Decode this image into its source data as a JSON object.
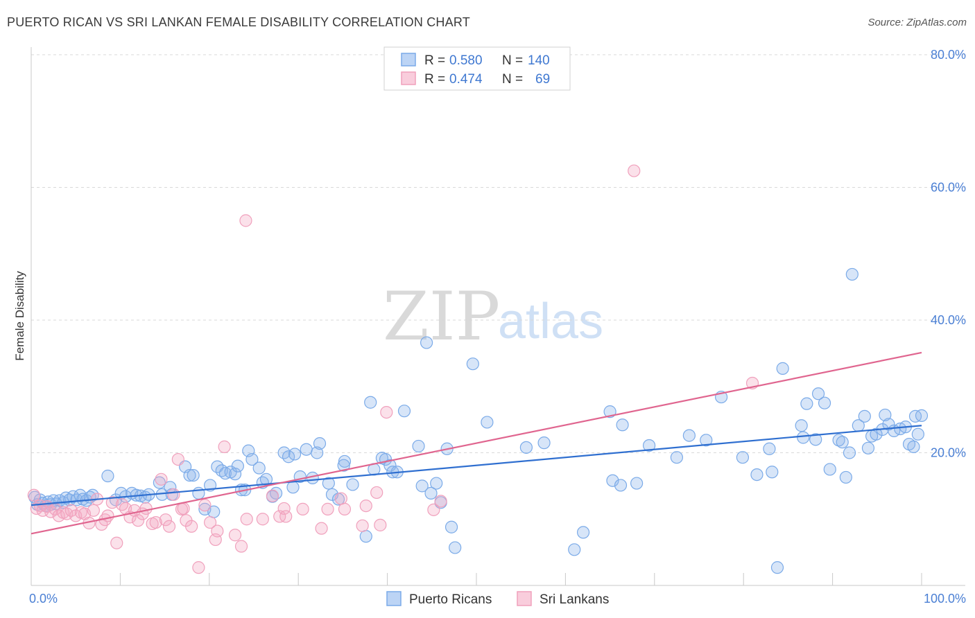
{
  "header": {
    "title": "PUERTO RICAN VS SRI LANKAN FEMALE DISABILITY CORRELATION CHART",
    "source": "Source: ZipAtlas.com"
  },
  "watermark": {
    "zip": "ZIP",
    "atlas": "atlas"
  },
  "legend": {
    "rows": [
      {
        "r_label": "R = ",
        "r_value": "0.580",
        "n_label": "N = ",
        "n_value": "140",
        "color": "#7aaae8"
      },
      {
        "r_label": "R = ",
        "r_value": "0.474",
        "n_label": "N = ",
        "n_value": "69",
        "color": "#f0a0bc"
      }
    ]
  },
  "bottom_legend": [
    {
      "label": "Puerto Ricans",
      "color": "#7aaae8"
    },
    {
      "label": "Sri Lankans",
      "color": "#f0a0bc"
    }
  ],
  "chart_data": {
    "type": "scatter",
    "title": "PUERTO RICAN VS SRI LANKAN FEMALE DISABILITY CORRELATION CHART",
    "ylabel": "Female Disability",
    "xlabel": "",
    "xlim": [
      0,
      100
    ],
    "ylim": [
      0,
      80
    ],
    "x_tick_labels": [
      {
        "value": 0,
        "label": "0.0%"
      },
      {
        "value": 100,
        "label": "100.0%"
      }
    ],
    "y_tick_labels": [
      {
        "value": 20,
        "label": "20.0%"
      },
      {
        "value": 40,
        "label": "40.0%"
      },
      {
        "value": 60,
        "label": "60.0%"
      },
      {
        "value": 80,
        "label": "80.0%"
      }
    ],
    "grid": true,
    "legend_position": "top-center",
    "series": [
      {
        "name": "Puerto Ricans",
        "color": "#7aaae8",
        "line_color": "#2f6fd0",
        "trend": {
          "x": [
            0,
            100
          ],
          "y": [
            12.1,
            24.1
          ]
        },
        "points": [
          [
            0.4,
            13.3
          ],
          [
            0.7,
            12.2
          ],
          [
            1.0,
            12.9
          ],
          [
            1.3,
            12.4
          ],
          [
            1.6,
            12.0
          ],
          [
            1.9,
            12.6
          ],
          [
            2.2,
            12.2
          ],
          [
            2.5,
            12.8
          ],
          [
            2.8,
            12.3
          ],
          [
            3.2,
            12.8
          ],
          [
            3.6,
            12.5
          ],
          [
            3.9,
            13.2
          ],
          [
            4.3,
            12.9
          ],
          [
            4.7,
            13.4
          ],
          [
            5.1,
            12.9
          ],
          [
            5.5,
            13.6
          ],
          [
            5.8,
            13.0
          ],
          [
            6.2,
            12.8
          ],
          [
            6.6,
            13.3
          ],
          [
            6.9,
            13.6
          ],
          [
            8.6,
            16.5
          ],
          [
            9.5,
            12.9
          ],
          [
            10.1,
            13.9
          ],
          [
            10.6,
            13.4
          ],
          [
            11.3,
            13.9
          ],
          [
            11.8,
            13.6
          ],
          [
            12.3,
            13.5
          ],
          [
            12.8,
            13.3
          ],
          [
            13.2,
            13.7
          ],
          [
            14.4,
            15.5
          ],
          [
            14.7,
            13.7
          ],
          [
            15.6,
            14.8
          ],
          [
            15.8,
            13.7
          ],
          [
            17.3,
            17.9
          ],
          [
            17.8,
            16.6
          ],
          [
            18.2,
            16.6
          ],
          [
            18.8,
            13.9
          ],
          [
            19.5,
            11.5
          ],
          [
            20.1,
            15.1
          ],
          [
            20.5,
            11.1
          ],
          [
            20.9,
            17.9
          ],
          [
            21.4,
            17.3
          ],
          [
            21.8,
            16.9
          ],
          [
            22.4,
            17.1
          ],
          [
            22.9,
            16.8
          ],
          [
            23.2,
            18.0
          ],
          [
            23.6,
            14.4
          ],
          [
            24.0,
            14.4
          ],
          [
            24.4,
            20.3
          ],
          [
            24.8,
            19.0
          ],
          [
            25.6,
            17.7
          ],
          [
            26.0,
            15.5
          ],
          [
            26.4,
            16.0
          ],
          [
            27.1,
            13.4
          ],
          [
            27.5,
            13.9
          ],
          [
            28.4,
            20.0
          ],
          [
            28.9,
            19.4
          ],
          [
            29.6,
            19.8
          ],
          [
            29.4,
            14.8
          ],
          [
            30.2,
            16.4
          ],
          [
            30.9,
            20.5
          ],
          [
            31.6,
            16.2
          ],
          [
            32.1,
            20.0
          ],
          [
            32.4,
            21.4
          ],
          [
            33.4,
            15.4
          ],
          [
            33.8,
            13.7
          ],
          [
            34.5,
            13.0
          ],
          [
            35.2,
            18.7
          ],
          [
            35.1,
            18.1
          ],
          [
            36.1,
            15.2
          ],
          [
            37.6,
            7.4
          ],
          [
            38.1,
            27.6
          ],
          [
            38.5,
            17.5
          ],
          [
            39.4,
            19.2
          ],
          [
            39.8,
            19.0
          ],
          [
            40.3,
            18.1
          ],
          [
            40.6,
            17.1
          ],
          [
            41.1,
            17.1
          ],
          [
            41.9,
            26.3
          ],
          [
            43.5,
            21.0
          ],
          [
            43.9,
            15.0
          ],
          [
            44.4,
            36.6
          ],
          [
            44.9,
            13.9
          ],
          [
            45.5,
            15.4
          ],
          [
            46.0,
            12.5
          ],
          [
            46.7,
            20.6
          ],
          [
            47.2,
            8.8
          ],
          [
            47.6,
            5.7
          ],
          [
            49.6,
            33.4
          ],
          [
            51.2,
            24.6
          ],
          [
            55.6,
            20.8
          ],
          [
            57.6,
            21.5
          ],
          [
            61.0,
            5.4
          ],
          [
            62.0,
            8.0
          ],
          [
            65.0,
            26.2
          ],
          [
            65.3,
            15.8
          ],
          [
            66.2,
            15.1
          ],
          [
            66.4,
            24.2
          ],
          [
            68.0,
            15.4
          ],
          [
            69.4,
            21.1
          ],
          [
            72.5,
            19.3
          ],
          [
            73.9,
            22.6
          ],
          [
            75.8,
            21.9
          ],
          [
            77.5,
            28.4
          ],
          [
            79.9,
            19.3
          ],
          [
            81.5,
            16.7
          ],
          [
            82.9,
            20.6
          ],
          [
            83.2,
            17.1
          ],
          [
            83.8,
            2.7
          ],
          [
            84.4,
            32.7
          ],
          [
            86.5,
            24.1
          ],
          [
            86.7,
            22.3
          ],
          [
            87.1,
            27.4
          ],
          [
            88.1,
            22.0
          ],
          [
            88.4,
            28.9
          ],
          [
            89.1,
            27.5
          ],
          [
            89.7,
            17.5
          ],
          [
            90.7,
            21.9
          ],
          [
            91.1,
            21.6
          ],
          [
            91.5,
            16.3
          ],
          [
            91.9,
            20.0
          ],
          [
            92.2,
            46.9
          ],
          [
            92.9,
            24.1
          ],
          [
            93.6,
            25.5
          ],
          [
            94.0,
            20.7
          ],
          [
            94.4,
            22.5
          ],
          [
            94.9,
            22.8
          ],
          [
            95.6,
            23.5
          ],
          [
            95.9,
            25.7
          ],
          [
            96.3,
            24.3
          ],
          [
            96.9,
            23.3
          ],
          [
            97.6,
            23.6
          ],
          [
            98.2,
            23.9
          ],
          [
            98.6,
            21.3
          ],
          [
            99.1,
            20.9
          ],
          [
            99.3,
            25.5
          ],
          [
            99.6,
            22.8
          ],
          [
            100.0,
            25.6
          ]
        ]
      },
      {
        "name": "Sri Lankans",
        "color": "#f0a0bc",
        "line_color": "#e0658f",
        "trend": {
          "x": [
            0,
            100
          ],
          "y": [
            7.8,
            35.1
          ]
        },
        "points": [
          [
            0.3,
            13.6
          ],
          [
            0.6,
            11.6
          ],
          [
            1.0,
            12.0
          ],
          [
            1.3,
            11.3
          ],
          [
            1.8,
            11.9
          ],
          [
            2.2,
            11.1
          ],
          [
            2.7,
            11.5
          ],
          [
            3.1,
            10.5
          ],
          [
            3.6,
            11.0
          ],
          [
            4.0,
            10.8
          ],
          [
            4.5,
            11.3
          ],
          [
            5.0,
            10.5
          ],
          [
            5.6,
            11.0
          ],
          [
            6.0,
            10.8
          ],
          [
            6.5,
            9.4
          ],
          [
            7.0,
            11.3
          ],
          [
            7.4,
            13.0
          ],
          [
            7.9,
            9.2
          ],
          [
            8.3,
            9.9
          ],
          [
            8.6,
            10.5
          ],
          [
            9.1,
            12.5
          ],
          [
            9.6,
            6.4
          ],
          [
            10.2,
            12.2
          ],
          [
            10.6,
            11.6
          ],
          [
            11.1,
            10.3
          ],
          [
            11.6,
            11.3
          ],
          [
            12.0,
            9.8
          ],
          [
            12.5,
            10.8
          ],
          [
            12.9,
            11.6
          ],
          [
            13.6,
            9.3
          ],
          [
            14.0,
            9.5
          ],
          [
            14.6,
            16.0
          ],
          [
            15.1,
            9.9
          ],
          [
            15.5,
            8.9
          ],
          [
            16.0,
            13.7
          ],
          [
            16.5,
            19.0
          ],
          [
            16.9,
            11.5
          ],
          [
            17.4,
            9.8
          ],
          [
            18.0,
            8.9
          ],
          [
            18.8,
            2.7
          ],
          [
            19.5,
            12.1
          ],
          [
            20.1,
            9.5
          ],
          [
            20.7,
            6.9
          ],
          [
            20.9,
            8.2
          ],
          [
            21.7,
            20.9
          ],
          [
            22.9,
            7.6
          ],
          [
            23.6,
            5.9
          ],
          [
            24.2,
            10.0
          ],
          [
            24.1,
            55.0
          ],
          [
            26.0,
            10.0
          ],
          [
            27.1,
            13.5
          ],
          [
            27.9,
            10.4
          ],
          [
            28.4,
            11.6
          ],
          [
            28.6,
            10.4
          ],
          [
            30.5,
            11.5
          ],
          [
            32.6,
            8.6
          ],
          [
            33.3,
            11.5
          ],
          [
            34.8,
            13.1
          ],
          [
            35.2,
            11.5
          ],
          [
            37.2,
            9.0
          ],
          [
            37.6,
            12.0
          ],
          [
            38.8,
            14.0
          ],
          [
            39.9,
            26.1
          ],
          [
            45.2,
            11.4
          ],
          [
            46.0,
            12.7
          ],
          [
            67.7,
            62.5
          ],
          [
            81.0,
            30.5
          ],
          [
            39.2,
            9.1
          ],
          [
            17.1,
            11.6
          ]
        ]
      }
    ]
  }
}
